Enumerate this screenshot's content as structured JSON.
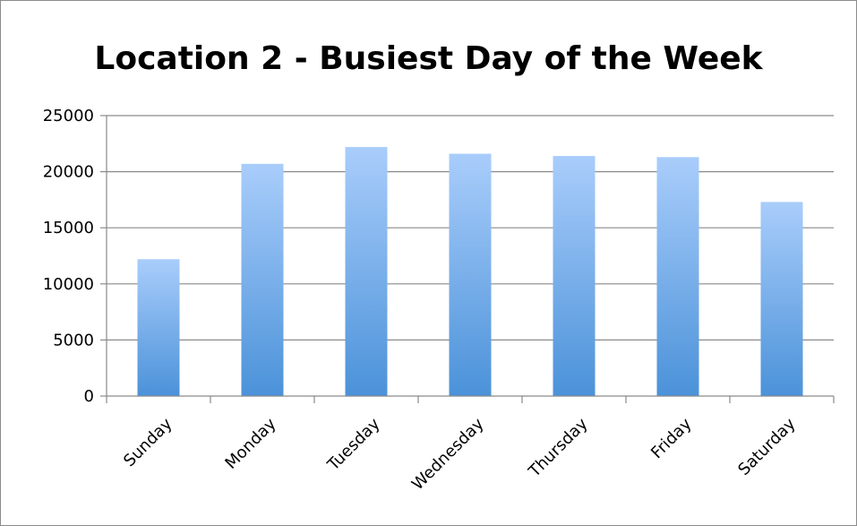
{
  "chart_data": {
    "type": "bar",
    "title": "Location 2 - Busiest Day of the Week",
    "categories": [
      "Sunday",
      "Monday",
      "Tuesday",
      "Wednesday",
      "Thursday",
      "Friday",
      "Saturday"
    ],
    "values": [
      12200,
      20700,
      22200,
      21600,
      21400,
      21300,
      17300
    ],
    "ylim": [
      0,
      25000
    ],
    "yticks": [
      0,
      5000,
      10000,
      15000,
      20000,
      25000
    ],
    "grid": true,
    "legend": "none",
    "colors": {
      "bar_top": "#a9cdfb",
      "bar_bottom": "#4b92d9",
      "grid": "#8a8a8a",
      "axis": "#8a8a8a"
    }
  }
}
